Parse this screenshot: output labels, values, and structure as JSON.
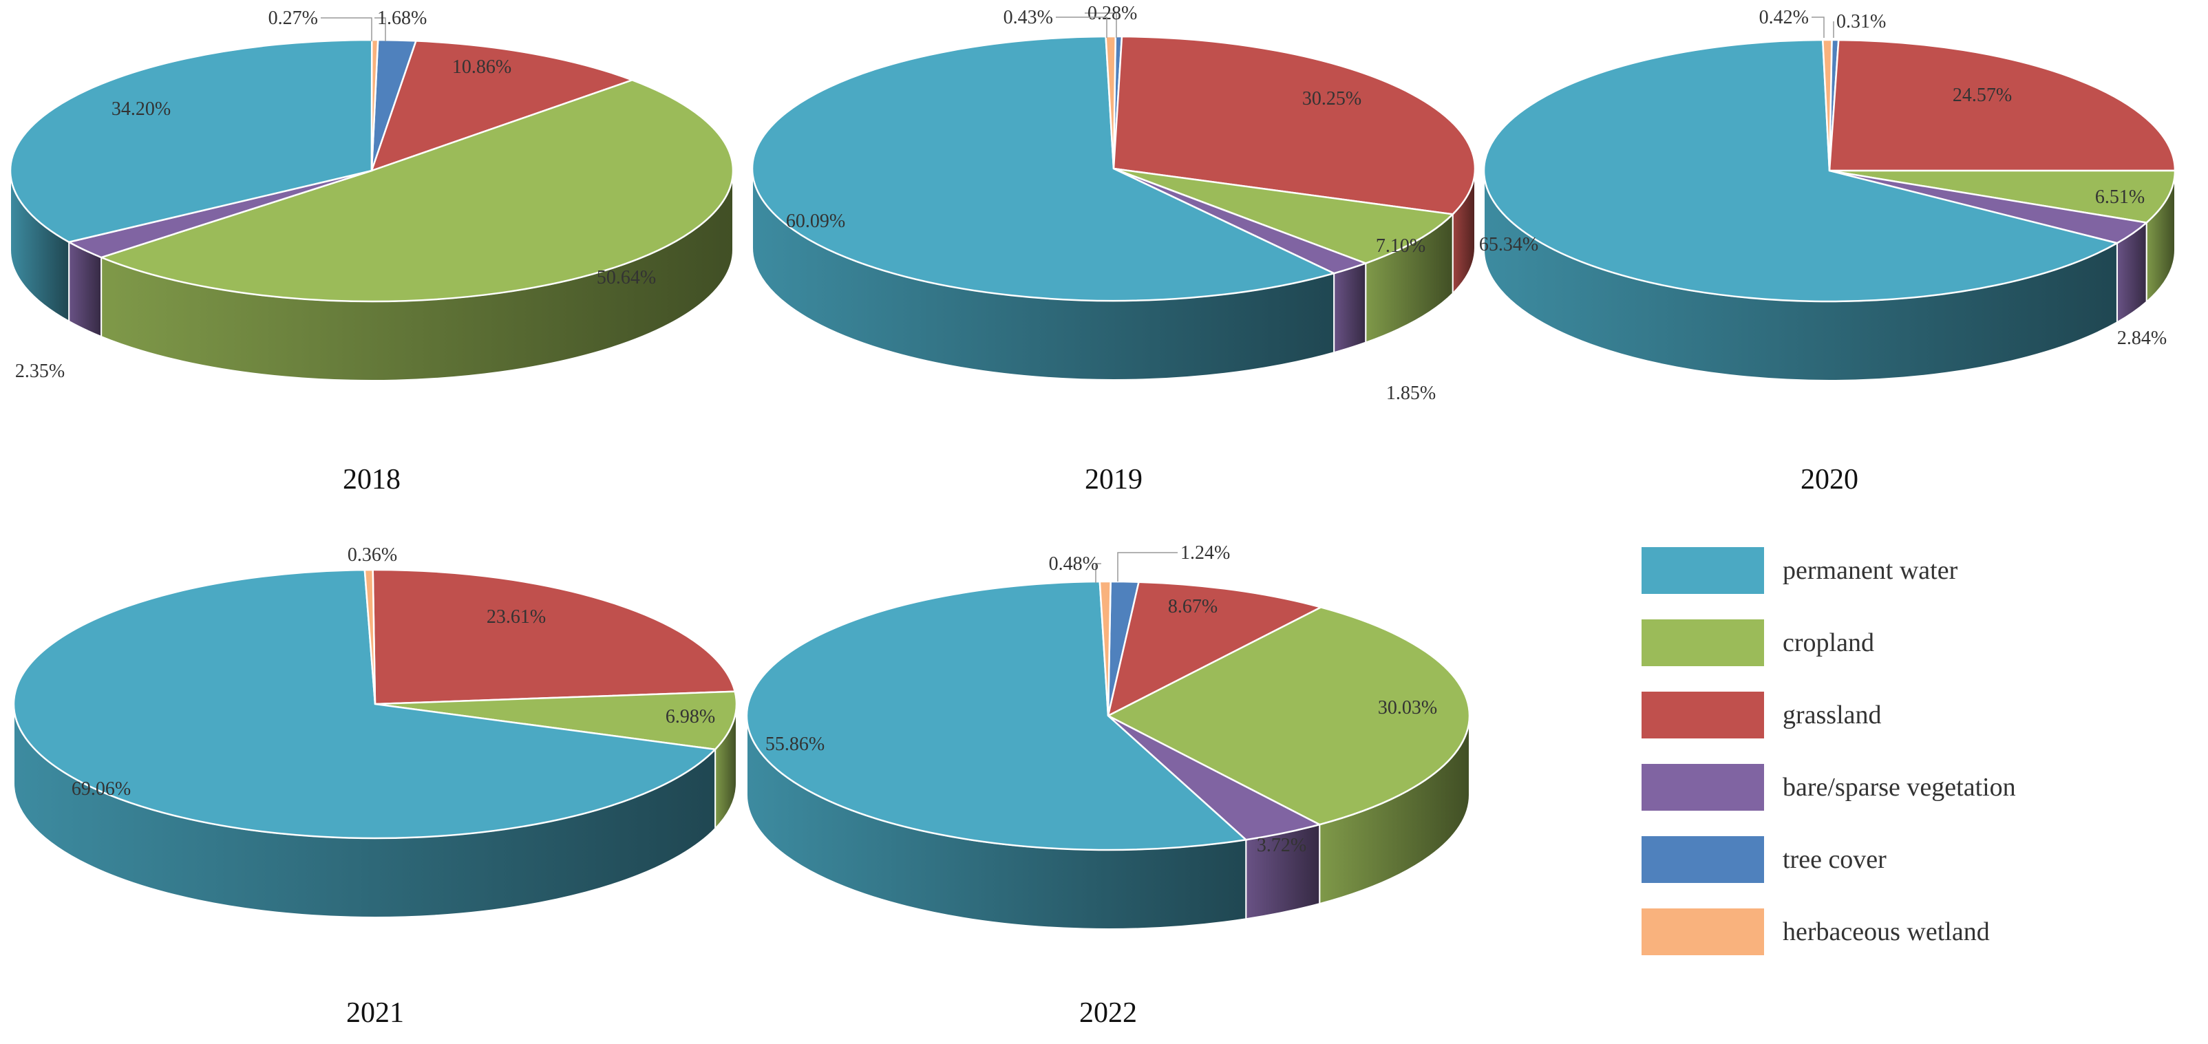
{
  "colors": {
    "permanent water": "#4BA9C3",
    "cropland": "#9BBB59",
    "grassland": "#C0504D",
    "bare/sparse vegetation": "#8064A2",
    "tree cover": "#4F81BD",
    "herbaceous wetland": "#F9B27D"
  },
  "legend": [
    {
      "label": "permanent water",
      "color": "#4BA9C3"
    },
    {
      "label": "cropland",
      "color": "#9BBB59"
    },
    {
      "label": "grassland",
      "color": "#C0504D"
    },
    {
      "label": "bare/sparse vegetation",
      "color": "#8064A2"
    },
    {
      "label": "tree cover",
      "color": "#4F81BD"
    },
    {
      "label": "herbaceous wetland",
      "color": "#F9B27D"
    }
  ],
  "chart_data": [
    {
      "type": "pie",
      "year": "2018",
      "slices": [
        {
          "category": "tree cover",
          "value": 1.68,
          "label": "1.68%"
        },
        {
          "category": "grassland",
          "value": 10.86,
          "label": "10.86%"
        },
        {
          "category": "cropland",
          "value": 50.64,
          "label": "50.64%"
        },
        {
          "category": "bare/sparse vegetation",
          "value": 2.35,
          "label": "2.35%"
        },
        {
          "category": "permanent water",
          "value": 34.2,
          "label": "34.20%"
        },
        {
          "category": "herbaceous wetland",
          "value": 0.27,
          "label": "0.27%"
        }
      ]
    },
    {
      "type": "pie",
      "year": "2019",
      "slices": [
        {
          "category": "tree cover",
          "value": 0.28,
          "label": "0.28%"
        },
        {
          "category": "grassland",
          "value": 30.25,
          "label": "30.25%"
        },
        {
          "category": "cropland",
          "value": 7.1,
          "label": "7.10%"
        },
        {
          "category": "bare/sparse vegetation",
          "value": 1.85,
          "label": "1.85%"
        },
        {
          "category": "permanent water",
          "value": 60.09,
          "label": "60.09%"
        },
        {
          "category": "herbaceous wetland",
          "value": 0.43,
          "label": "0.43%"
        }
      ]
    },
    {
      "type": "pie",
      "year": "2020",
      "slices": [
        {
          "category": "tree cover",
          "value": 0.31,
          "label": "0.31%"
        },
        {
          "category": "grassland",
          "value": 24.57,
          "label": "24.57%"
        },
        {
          "category": "cropland",
          "value": 6.51,
          "label": "6.51%"
        },
        {
          "category": "bare/sparse vegetation",
          "value": 2.84,
          "label": "2.84%"
        },
        {
          "category": "permanent water",
          "value": 65.34,
          "label": "65.34%"
        },
        {
          "category": "herbaceous wetland",
          "value": 0.42,
          "label": "0.42%"
        }
      ]
    },
    {
      "type": "pie",
      "year": "2021",
      "slices": [
        {
          "category": "grassland",
          "value": 23.61,
          "label": "23.61%"
        },
        {
          "category": "cropland",
          "value": 6.98,
          "label": "6.98%"
        },
        {
          "category": "permanent water",
          "value": 69.06,
          "label": "69.06%"
        },
        {
          "category": "herbaceous wetland",
          "value": 0.36,
          "label": "0.36%"
        }
      ]
    },
    {
      "type": "pie",
      "year": "2022",
      "slices": [
        {
          "category": "tree cover",
          "value": 1.24,
          "label": "1.24%"
        },
        {
          "category": "grassland",
          "value": 8.67,
          "label": "8.67%"
        },
        {
          "category": "cropland",
          "value": 30.03,
          "label": "30.03%"
        },
        {
          "category": "bare/sparse vegetation",
          "value": 3.72,
          "label": "3.72%"
        },
        {
          "category": "permanent water",
          "value": 55.86,
          "label": "55.86%"
        },
        {
          "category": "herbaceous wetland",
          "value": 0.48,
          "label": "0.48%"
        }
      ]
    }
  ]
}
